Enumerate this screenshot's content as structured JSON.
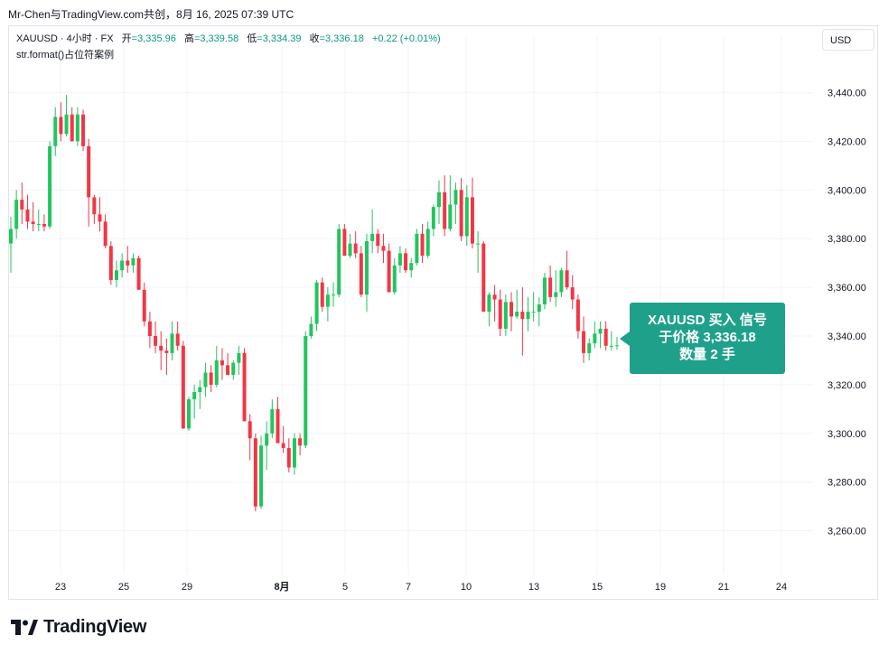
{
  "header": {
    "author_line": "Mr-Chen与TradingView.com共创，8月 16, 2025 07:39 UTC"
  },
  "legend": {
    "symbol": "XAUUSD · 4小时 · FX",
    "open_label": "开",
    "open": "=3,335.96",
    "high_label": "高",
    "high": "=3,339.58",
    "low_label": "低",
    "low": "=3,334.39",
    "close_label": "收",
    "close": "=3,336.18",
    "change": "+0.22 (+0.01%)",
    "script": "str.format()占位符案例"
  },
  "currency_button": "USD",
  "signal_label": {
    "line1": "XAUUSD 买入 信号",
    "line2": "于价格 3,336.18",
    "line3": "数量 2 手"
  },
  "logo_text": "TradingView",
  "colors": {
    "up": "#22c55e",
    "down": "#f23645",
    "label_bg": "#1fa08a",
    "grid": "#f0f3fa"
  },
  "chart_data": {
    "type": "candlestick",
    "title": "",
    "xlabel": "",
    "ylabel": "",
    "ylim": [
      3250,
      3450
    ],
    "y_ticks": [
      3260,
      3280,
      3300,
      3320,
      3340,
      3360,
      3380,
      3400,
      3420,
      3440
    ],
    "y_tick_labels": [
      "3,260.00",
      "3,280.00",
      "3,300.00",
      "3,320.00",
      "3,340.00",
      "3,360.00",
      "3,380.00",
      "3,400.00",
      "3,420.00",
      "3,440.00"
    ],
    "x_tick_labels": [
      "23",
      "25",
      "29",
      "8月",
      "5",
      "7",
      "10",
      "13",
      "15",
      "19",
      "21",
      "24"
    ],
    "candles": [
      {
        "o": 3378,
        "h": 3389,
        "l": 3366,
        "c": 3384
      },
      {
        "o": 3384,
        "h": 3400,
        "l": 3380,
        "c": 3396
      },
      {
        "o": 3396,
        "h": 3403,
        "l": 3386,
        "c": 3392
      },
      {
        "o": 3392,
        "h": 3398,
        "l": 3384,
        "c": 3387
      },
      {
        "o": 3387,
        "h": 3395,
        "l": 3383,
        "c": 3386
      },
      {
        "o": 3386,
        "h": 3392,
        "l": 3383,
        "c": 3386
      },
      {
        "o": 3386,
        "h": 3390,
        "l": 3383,
        "c": 3385
      },
      {
        "o": 3385,
        "h": 3420,
        "l": 3384,
        "c": 3418
      },
      {
        "o": 3418,
        "h": 3434,
        "l": 3414,
        "c": 3430
      },
      {
        "o": 3430,
        "h": 3436,
        "l": 3420,
        "c": 3423
      },
      {
        "o": 3423,
        "h": 3439,
        "l": 3422,
        "c": 3431
      },
      {
        "o": 3431,
        "h": 3434,
        "l": 3420,
        "c": 3420
      },
      {
        "o": 3420,
        "h": 3434,
        "l": 3418,
        "c": 3431
      },
      {
        "o": 3431,
        "h": 3433,
        "l": 3416,
        "c": 3418
      },
      {
        "o": 3418,
        "h": 3421,
        "l": 3385,
        "c": 3397
      },
      {
        "o": 3397,
        "h": 3398,
        "l": 3386,
        "c": 3390
      },
      {
        "o": 3390,
        "h": 3397,
        "l": 3383,
        "c": 3387
      },
      {
        "o": 3387,
        "h": 3390,
        "l": 3376,
        "c": 3377
      },
      {
        "o": 3377,
        "h": 3379,
        "l": 3361,
        "c": 3363
      },
      {
        "o": 3363,
        "h": 3371,
        "l": 3360,
        "c": 3367
      },
      {
        "o": 3367,
        "h": 3374,
        "l": 3364,
        "c": 3371
      },
      {
        "o": 3371,
        "h": 3377,
        "l": 3366,
        "c": 3369
      },
      {
        "o": 3369,
        "h": 3374,
        "l": 3366,
        "c": 3372
      },
      {
        "o": 3372,
        "h": 3373,
        "l": 3359,
        "c": 3359
      },
      {
        "o": 3359,
        "h": 3362,
        "l": 3344,
        "c": 3346
      },
      {
        "o": 3346,
        "h": 3350,
        "l": 3335,
        "c": 3340
      },
      {
        "o": 3340,
        "h": 3346,
        "l": 3333,
        "c": 3336
      },
      {
        "o": 3336,
        "h": 3342,
        "l": 3326,
        "c": 3334
      },
      {
        "o": 3334,
        "h": 3339,
        "l": 3324,
        "c": 3333
      },
      {
        "o": 3333,
        "h": 3346,
        "l": 3330,
        "c": 3341
      },
      {
        "o": 3341,
        "h": 3346,
        "l": 3334,
        "c": 3336
      },
      {
        "o": 3336,
        "h": 3338,
        "l": 3302,
        "c": 3302
      },
      {
        "o": 3302,
        "h": 3315,
        "l": 3301,
        "c": 3314
      },
      {
        "o": 3314,
        "h": 3320,
        "l": 3306,
        "c": 3317
      },
      {
        "o": 3317,
        "h": 3322,
        "l": 3310,
        "c": 3319
      },
      {
        "o": 3319,
        "h": 3329,
        "l": 3315,
        "c": 3325
      },
      {
        "o": 3325,
        "h": 3328,
        "l": 3317,
        "c": 3320
      },
      {
        "o": 3320,
        "h": 3336,
        "l": 3319,
        "c": 3330
      },
      {
        "o": 3330,
        "h": 3335,
        "l": 3322,
        "c": 3328
      },
      {
        "o": 3328,
        "h": 3333,
        "l": 3324,
        "c": 3324
      },
      {
        "o": 3324,
        "h": 3330,
        "l": 3322,
        "c": 3329
      },
      {
        "o": 3329,
        "h": 3336,
        "l": 3324,
        "c": 3333
      },
      {
        "o": 3333,
        "h": 3335,
        "l": 3305,
        "c": 3305
      },
      {
        "o": 3305,
        "h": 3308,
        "l": 3289,
        "c": 3298
      },
      {
        "o": 3298,
        "h": 3300,
        "l": 3268,
        "c": 3270
      },
      {
        "o": 3270,
        "h": 3299,
        "l": 3269,
        "c": 3295
      },
      {
        "o": 3295,
        "h": 3305,
        "l": 3285,
        "c": 3300
      },
      {
        "o": 3300,
        "h": 3314,
        "l": 3298,
        "c": 3310
      },
      {
        "o": 3310,
        "h": 3315,
        "l": 3296,
        "c": 3296
      },
      {
        "o": 3296,
        "h": 3303,
        "l": 3292,
        "c": 3294
      },
      {
        "o": 3294,
        "h": 3298,
        "l": 3284,
        "c": 3286
      },
      {
        "o": 3286,
        "h": 3300,
        "l": 3283,
        "c": 3298
      },
      {
        "o": 3298,
        "h": 3300,
        "l": 3291,
        "c": 3295
      },
      {
        "o": 3295,
        "h": 3342,
        "l": 3294,
        "c": 3340
      },
      {
        "o": 3340,
        "h": 3348,
        "l": 3339,
        "c": 3345
      },
      {
        "o": 3345,
        "h": 3363,
        "l": 3342,
        "c": 3362
      },
      {
        "o": 3362,
        "h": 3364,
        "l": 3350,
        "c": 3352
      },
      {
        "o": 3352,
        "h": 3360,
        "l": 3346,
        "c": 3357
      },
      {
        "o": 3357,
        "h": 3362,
        "l": 3352,
        "c": 3357
      },
      {
        "o": 3357,
        "h": 3386,
        "l": 3356,
        "c": 3384
      },
      {
        "o": 3384,
        "h": 3386,
        "l": 3373,
        "c": 3373
      },
      {
        "o": 3373,
        "h": 3382,
        "l": 3372,
        "c": 3378
      },
      {
        "o": 3378,
        "h": 3383,
        "l": 3372,
        "c": 3374
      },
      {
        "o": 3374,
        "h": 3377,
        "l": 3356,
        "c": 3357
      },
      {
        "o": 3357,
        "h": 3382,
        "l": 3350,
        "c": 3379
      },
      {
        "o": 3379,
        "h": 3392,
        "l": 3374,
        "c": 3382
      },
      {
        "o": 3382,
        "h": 3384,
        "l": 3374,
        "c": 3377
      },
      {
        "o": 3377,
        "h": 3382,
        "l": 3370,
        "c": 3375
      },
      {
        "o": 3375,
        "h": 3378,
        "l": 3358,
        "c": 3358
      },
      {
        "o": 3358,
        "h": 3372,
        "l": 3357,
        "c": 3369
      },
      {
        "o": 3369,
        "h": 3377,
        "l": 3366,
        "c": 3374
      },
      {
        "o": 3374,
        "h": 3376,
        "l": 3366,
        "c": 3367
      },
      {
        "o": 3367,
        "h": 3372,
        "l": 3364,
        "c": 3370
      },
      {
        "o": 3370,
        "h": 3384,
        "l": 3369,
        "c": 3382
      },
      {
        "o": 3382,
        "h": 3386,
        "l": 3370,
        "c": 3373
      },
      {
        "o": 3373,
        "h": 3387,
        "l": 3372,
        "c": 3384
      },
      {
        "o": 3384,
        "h": 3394,
        "l": 3381,
        "c": 3393
      },
      {
        "o": 3393,
        "h": 3404,
        "l": 3386,
        "c": 3399
      },
      {
        "o": 3399,
        "h": 3406,
        "l": 3381,
        "c": 3384
      },
      {
        "o": 3384,
        "h": 3406,
        "l": 3383,
        "c": 3394
      },
      {
        "o": 3394,
        "h": 3403,
        "l": 3386,
        "c": 3400
      },
      {
        "o": 3400,
        "h": 3405,
        "l": 3379,
        "c": 3381
      },
      {
        "o": 3381,
        "h": 3402,
        "l": 3377,
        "c": 3397
      },
      {
        "o": 3397,
        "h": 3405,
        "l": 3376,
        "c": 3378
      },
      {
        "o": 3378,
        "h": 3383,
        "l": 3366,
        "c": 3378
      },
      {
        "o": 3378,
        "h": 3379,
        "l": 3350,
        "c": 3350
      },
      {
        "o": 3350,
        "h": 3358,
        "l": 3344,
        "c": 3357
      },
      {
        "o": 3357,
        "h": 3361,
        "l": 3346,
        "c": 3355
      },
      {
        "o": 3355,
        "h": 3359,
        "l": 3340,
        "c": 3343
      },
      {
        "o": 3343,
        "h": 3357,
        "l": 3340,
        "c": 3354
      },
      {
        "o": 3354,
        "h": 3358,
        "l": 3342,
        "c": 3348
      },
      {
        "o": 3348,
        "h": 3359,
        "l": 3347,
        "c": 3350
      },
      {
        "o": 3350,
        "h": 3360,
        "l": 3332,
        "c": 3347
      },
      {
        "o": 3347,
        "h": 3356,
        "l": 3342,
        "c": 3350
      },
      {
        "o": 3350,
        "h": 3358,
        "l": 3346,
        "c": 3350
      },
      {
        "o": 3350,
        "h": 3356,
        "l": 3344,
        "c": 3353
      },
      {
        "o": 3353,
        "h": 3366,
        "l": 3351,
        "c": 3364
      },
      {
        "o": 3364,
        "h": 3369,
        "l": 3354,
        "c": 3356
      },
      {
        "o": 3356,
        "h": 3367,
        "l": 3352,
        "c": 3358
      },
      {
        "o": 3358,
        "h": 3368,
        "l": 3356,
        "c": 3367
      },
      {
        "o": 3367,
        "h": 3375,
        "l": 3359,
        "c": 3360
      },
      {
        "o": 3360,
        "h": 3365,
        "l": 3351,
        "c": 3355
      },
      {
        "o": 3355,
        "h": 3357,
        "l": 3339,
        "c": 3342
      },
      {
        "o": 3342,
        "h": 3348,
        "l": 3329,
        "c": 3333
      },
      {
        "o": 3333,
        "h": 3339,
        "l": 3330,
        "c": 3337
      },
      {
        "o": 3337,
        "h": 3346,
        "l": 3335,
        "c": 3341
      },
      {
        "o": 3341,
        "h": 3346,
        "l": 3335,
        "c": 3343
      },
      {
        "o": 3343,
        "h": 3346,
        "l": 3334,
        "c": 3336
      },
      {
        "o": 3336,
        "h": 3342,
        "l": 3334,
        "c": 3336
      },
      {
        "o": 3335.96,
        "h": 3339.58,
        "l": 3334.39,
        "c": 3336.18
      }
    ]
  }
}
